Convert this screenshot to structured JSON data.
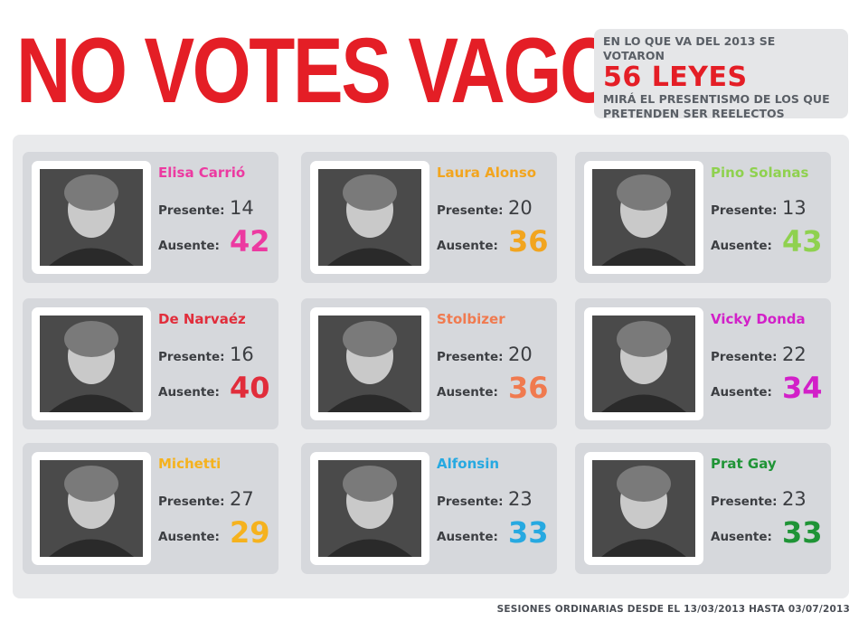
{
  "title": "NO VOTES VAGOS",
  "info": {
    "line1": "EN LO QUE VA DEL 2013 SE VOTARON",
    "highlight": "56 LEYES",
    "line3a": "MIRÁ EL PRESENTISMO DE LOS QUE",
    "line3b": "PRETENDEN SER REELECTOS",
    "highlight_color": "#e41e26"
  },
  "labels": {
    "present": "Presente:",
    "absent": "Ausente:"
  },
  "legislators": [
    {
      "name": "Elisa Carrió",
      "present": "14",
      "absent": "42",
      "color": "#ec3aa1"
    },
    {
      "name": "Laura Alonso",
      "present": "20",
      "absent": "36",
      "color": "#f2a51f"
    },
    {
      "name": "Pino Solanas",
      "present": "13",
      "absent": "43",
      "color": "#8fd14f"
    },
    {
      "name": "De Narvaéz",
      "present": "16",
      "absent": "40",
      "color": "#e12d3b"
    },
    {
      "name": "Stolbizer",
      "present": "20",
      "absent": "36",
      "color": "#f07a4f"
    },
    {
      "name": "Vicky Donda",
      "present": "22",
      "absent": "34",
      "color": "#d220c8"
    },
    {
      "name": "Michetti",
      "present": "27",
      "absent": "29",
      "color": "#f5b21e"
    },
    {
      "name": "Alfonsin",
      "present": "23",
      "absent": "33",
      "color": "#27a9e1"
    },
    {
      "name": "Prat Gay",
      "present": "23",
      "absent": "33",
      "color": "#1f9436"
    }
  ],
  "footer": "SESIONES ORDINARIAS DESDE EL 13/03/2013 HASTA 03/07/2013"
}
